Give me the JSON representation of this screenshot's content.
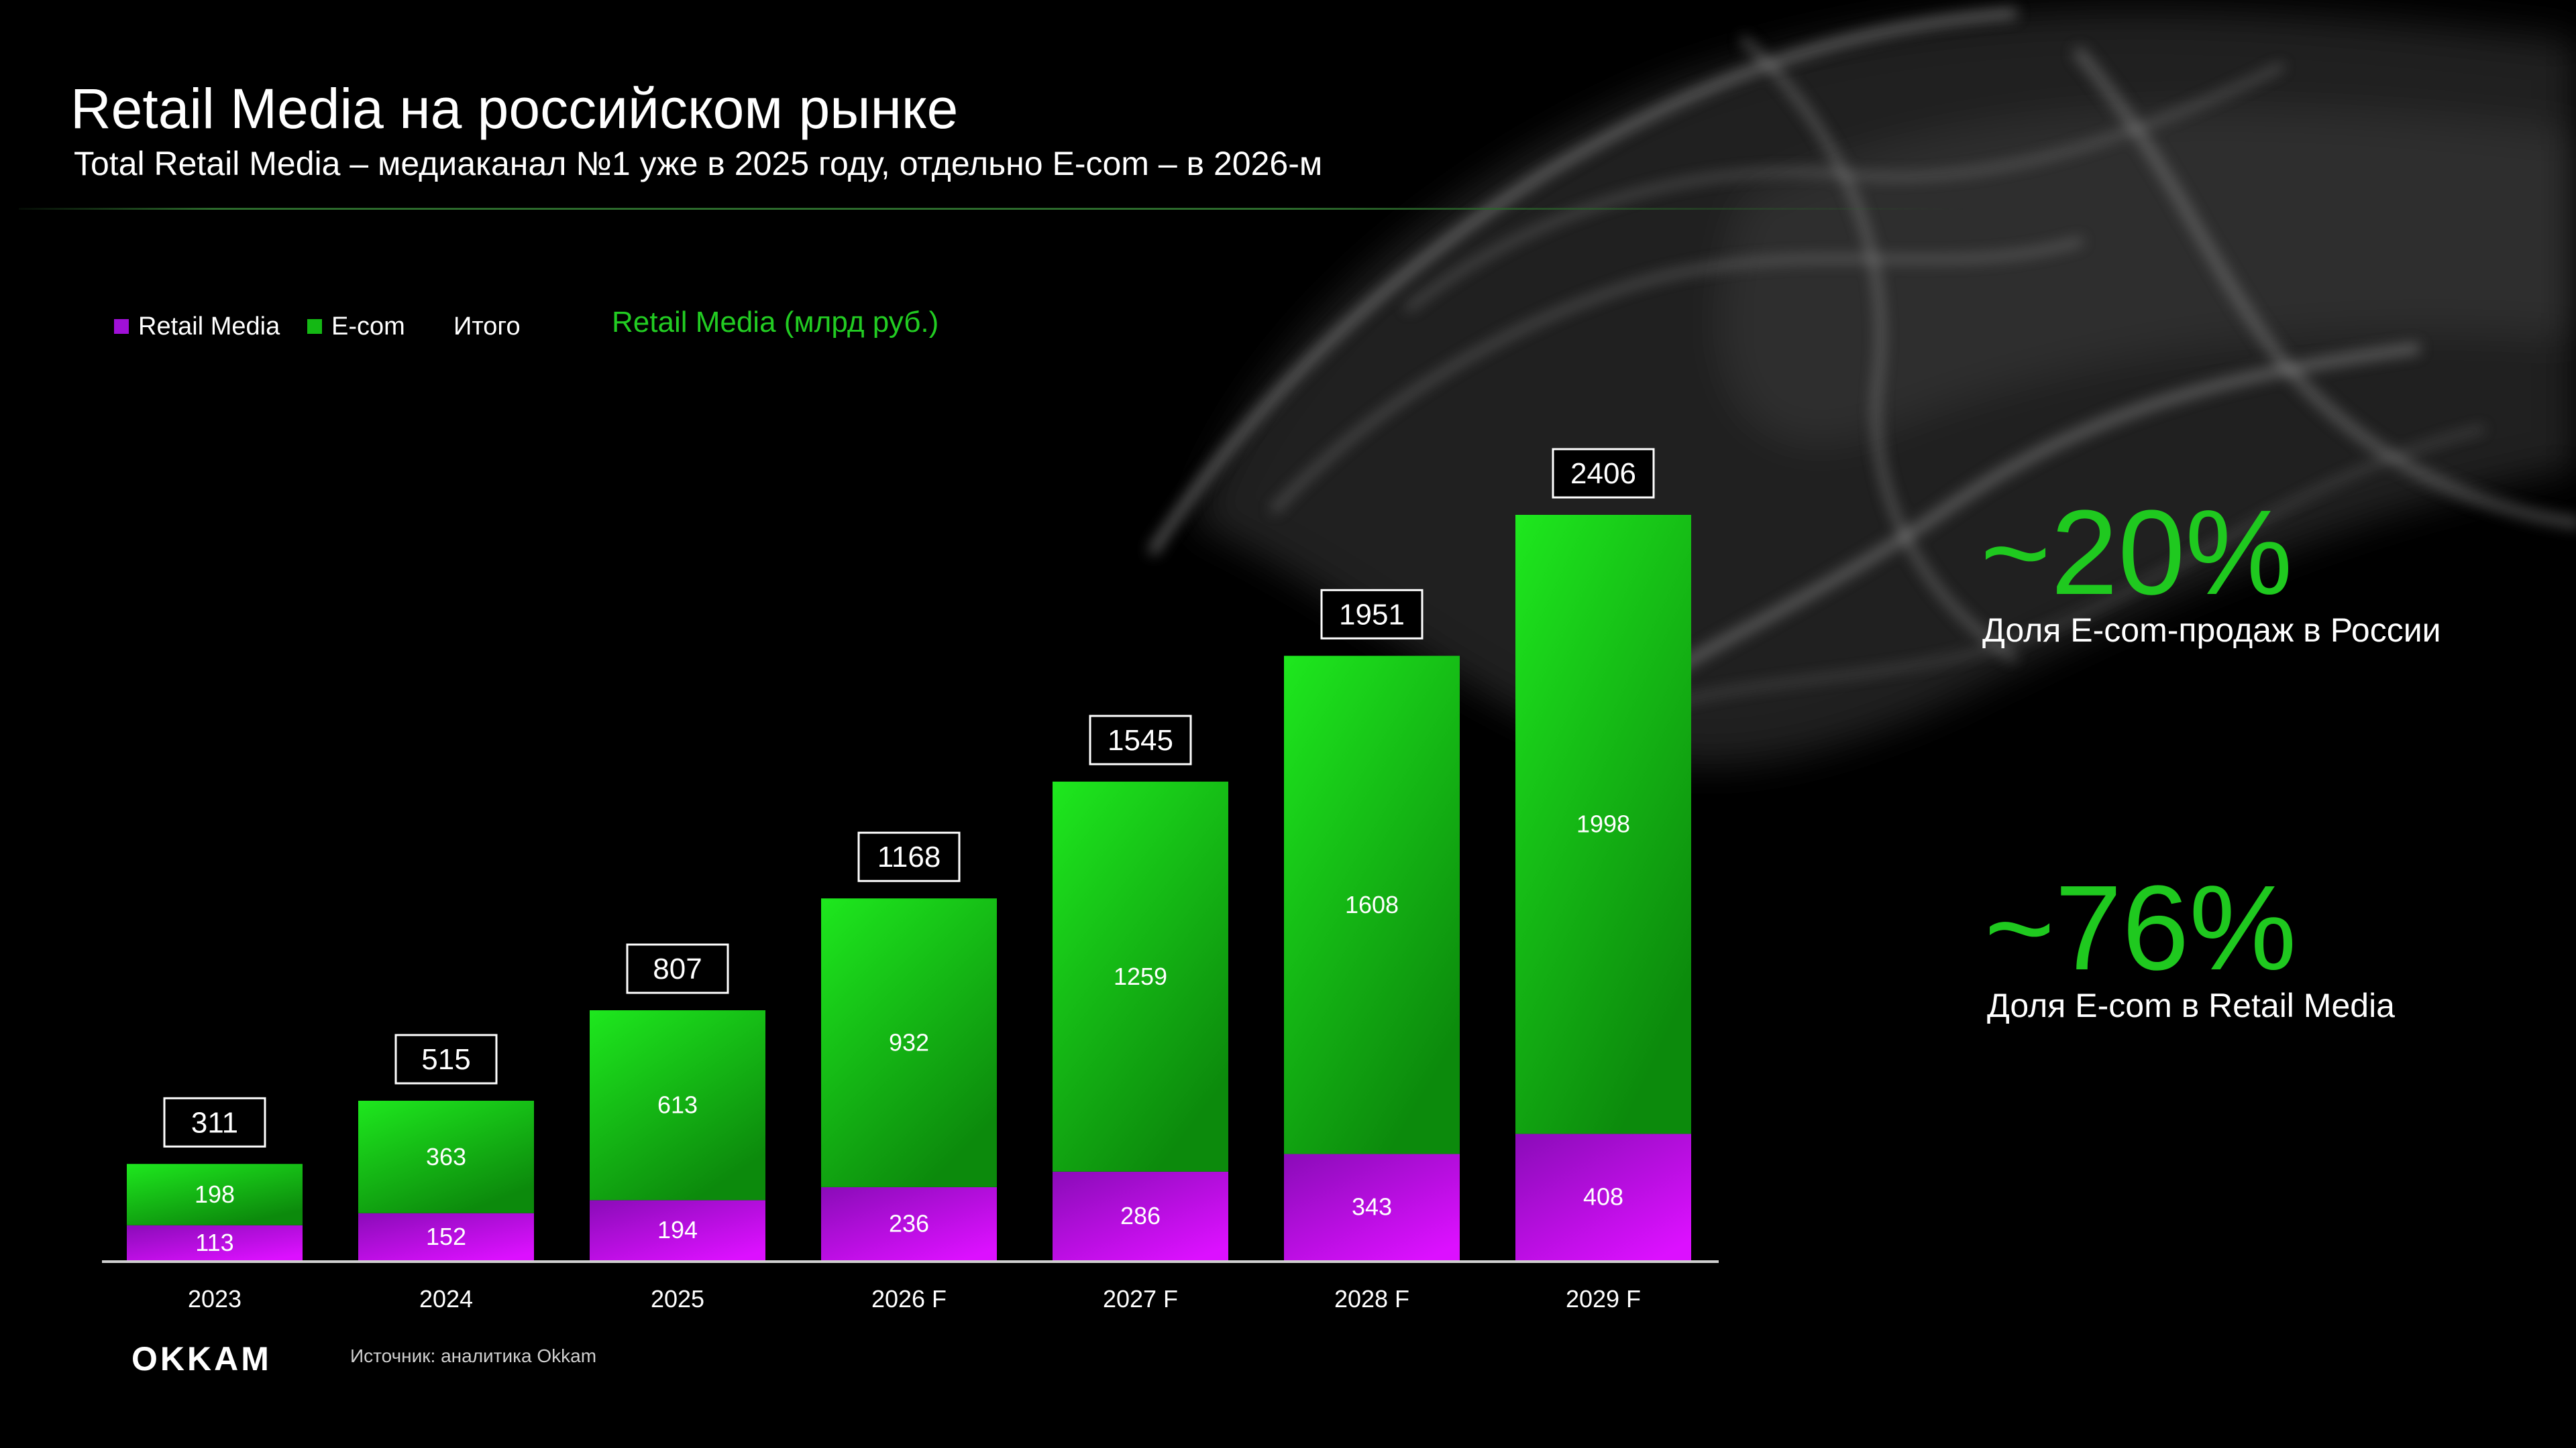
{
  "header": {
    "title": "Retail Media на российском рынке",
    "subtitle": "Total Retail Media – медиаканал №1 уже в 2025 году, отдельно E-com – в 2026-м"
  },
  "legend": {
    "items": [
      {
        "label": "Retail Media",
        "color": "#a010d8"
      },
      {
        "label": "E-com",
        "color": "#14b814"
      },
      {
        "label": "Итого"
      }
    ],
    "unit": "Retail Media (млрд руб.)"
  },
  "chart_data": {
    "type": "bar",
    "stacked": true,
    "categories": [
      "2023",
      "2024",
      "2025",
      "2026 F",
      "2027 F",
      "2028 F",
      "2029 F"
    ],
    "series": [
      {
        "name": "Retail Media",
        "values": [
          113,
          152,
          194,
          236,
          286,
          343,
          408
        ],
        "color": "#c010f8"
      },
      {
        "name": "E-com",
        "values": [
          198,
          363,
          613,
          932,
          1259,
          1608,
          1998
        ],
        "color": "#16d016"
      }
    ],
    "totals": {
      "name": "Итого",
      "values": [
        311,
        515,
        807,
        1168,
        1545,
        1951,
        2406
      ]
    },
    "title": "Retail Media (млрд руб.)",
    "ylim": [
      0,
      2406
    ],
    "grid": false,
    "legend_position": "top-left"
  },
  "stats": [
    {
      "value": "~20%",
      "label": "Доля E-com-продаж в России"
    },
    {
      "value": "~76%",
      "label": "Доля E-com в Retail Media"
    }
  ],
  "footer": {
    "brand": "OKKAM",
    "source": "Источник: аналитика Okkam"
  }
}
